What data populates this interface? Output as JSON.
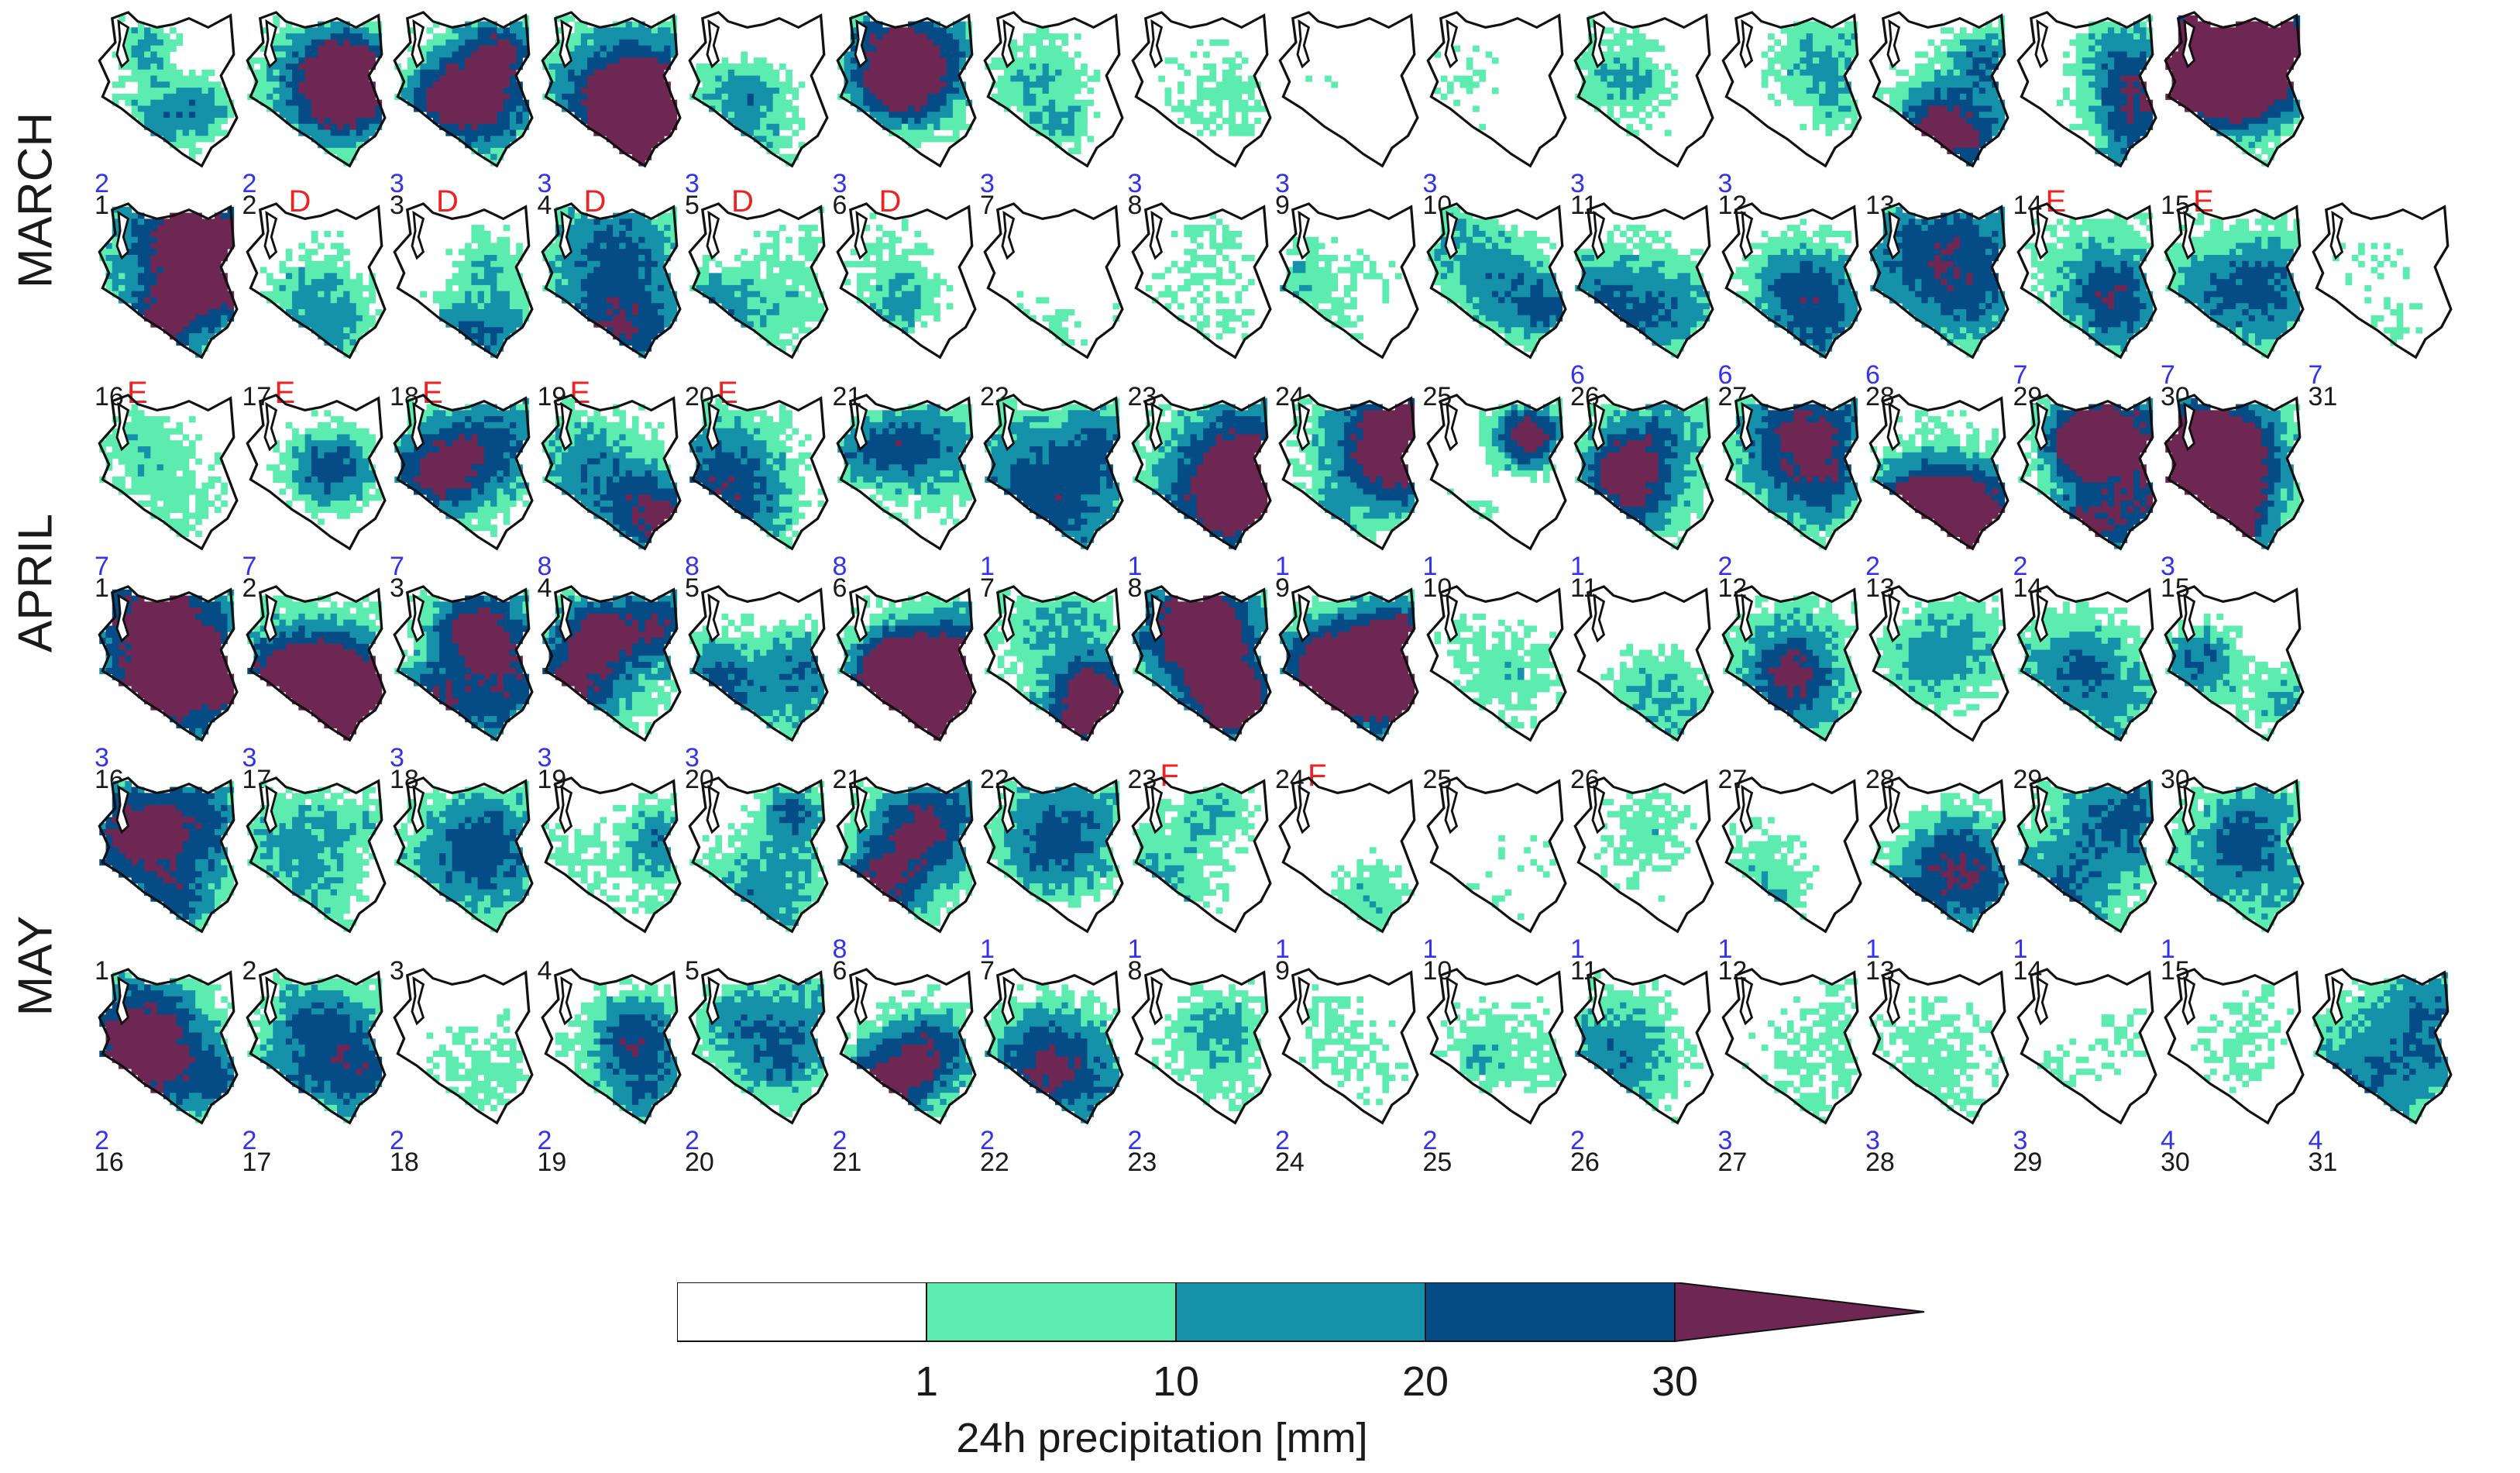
{
  "figure": {
    "months": [
      {
        "name": "MARCH",
        "rows": [
          {
            "days": [
              {
                "day": "1",
                "cat": "2",
                "event": "",
                "level": 0.45
              },
              {
                "day": "2",
                "cat": "2",
                "event": "D",
                "level": 0.72
              },
              {
                "day": "3",
                "cat": "3",
                "event": "D",
                "level": 0.7
              },
              {
                "day": "4",
                "cat": "3",
                "event": "D",
                "level": 0.88
              },
              {
                "day": "5",
                "cat": "3",
                "event": "D",
                "level": 0.45
              },
              {
                "day": "6",
                "cat": "3",
                "event": "D",
                "level": 0.6
              },
              {
                "day": "7",
                "cat": "3",
                "event": "",
                "level": 0.2
              },
              {
                "day": "8",
                "cat": "3",
                "event": "",
                "level": 0.14
              },
              {
                "day": "9",
                "cat": "3",
                "event": "",
                "level": 0.08
              },
              {
                "day": "10",
                "cat": "3",
                "event": "",
                "level": 0.14
              },
              {
                "day": "11",
                "cat": "3",
                "event": "",
                "level": 0.22
              },
              {
                "day": "12",
                "cat": "3",
                "event": "",
                "level": 0.25
              },
              {
                "day": "13",
                "cat": "",
                "event": "",
                "level": 0.5
              },
              {
                "day": "14",
                "cat": "",
                "event": "E",
                "level": 0.6
              },
              {
                "day": "15",
                "cat": "",
                "event": "E",
                "level": 0.95
              }
            ]
          },
          {
            "days": [
              {
                "day": "16",
                "cat": "",
                "event": "E",
                "level": 0.95
              },
              {
                "day": "17",
                "cat": "",
                "event": "E",
                "level": 0.25
              },
              {
                "day": "18",
                "cat": "",
                "event": "E",
                "level": 0.4
              },
              {
                "day": "19",
                "cat": "",
                "event": "E",
                "level": 0.55
              },
              {
                "day": "20",
                "cat": "",
                "event": "E",
                "level": 0.3
              },
              {
                "day": "21",
                "cat": "",
                "event": "",
                "level": 0.22
              },
              {
                "day": "22",
                "cat": "",
                "event": "",
                "level": 0.18
              },
              {
                "day": "23",
                "cat": "",
                "event": "",
                "level": 0.18
              },
              {
                "day": "24",
                "cat": "",
                "event": "",
                "level": 0.2
              },
              {
                "day": "25",
                "cat": "",
                "event": "",
                "level": 0.45
              },
              {
                "day": "26",
                "cat": "6",
                "event": "",
                "level": 0.35
              },
              {
                "day": "27",
                "cat": "6",
                "event": "",
                "level": 0.3
              },
              {
                "day": "28",
                "cat": "6",
                "event": "",
                "level": 0.4
              },
              {
                "day": "29",
                "cat": "7",
                "event": "",
                "level": 0.35
              },
              {
                "day": "30",
                "cat": "7",
                "event": "",
                "level": 0.45
              },
              {
                "day": "31",
                "cat": "7",
                "event": "",
                "level": 0.12
              }
            ]
          }
        ]
      },
      {
        "name": "APRIL",
        "rows": [
          {
            "days": [
              {
                "day": "1",
                "cat": "7",
                "event": "",
                "level": 0.22
              },
              {
                "day": "2",
                "cat": "7",
                "event": "",
                "level": 0.3
              },
              {
                "day": "3",
                "cat": "7",
                "event": "",
                "level": 0.5
              },
              {
                "day": "4",
                "cat": "8",
                "event": "",
                "level": 0.5
              },
              {
                "day": "5",
                "cat": "8",
                "event": "",
                "level": 0.45
              },
              {
                "day": "6",
                "cat": "8",
                "event": "",
                "level": 0.4
              },
              {
                "day": "7",
                "cat": "1",
                "event": "",
                "level": 0.6
              },
              {
                "day": "8",
                "cat": "1",
                "event": "",
                "level": 0.75
              },
              {
                "day": "9",
                "cat": "1",
                "event": "",
                "level": 0.6
              },
              {
                "day": "10",
                "cat": "1",
                "event": "",
                "level": 0.5
              },
              {
                "day": "11",
                "cat": "1",
                "event": "",
                "level": 0.65
              },
              {
                "day": "12",
                "cat": "2",
                "event": "",
                "level": 0.5
              },
              {
                "day": "13",
                "cat": "2",
                "event": "",
                "level": 0.75
              },
              {
                "day": "14",
                "cat": "2",
                "event": "",
                "level": 0.95
              },
              {
                "day": "15",
                "cat": "3",
                "event": "",
                "level": 0.85
              }
            ]
          },
          {
            "days": [
              {
                "day": "16",
                "cat": "3",
                "event": "",
                "level": 0.75
              },
              {
                "day": "17",
                "cat": "3",
                "event": "",
                "level": 0.75
              },
              {
                "day": "18",
                "cat": "3",
                "event": "",
                "level": 0.6
              },
              {
                "day": "19",
                "cat": "3",
                "event": "",
                "level": 0.7
              },
              {
                "day": "20",
                "cat": "3",
                "event": "",
                "level": 0.5
              },
              {
                "day": "21",
                "cat": "",
                "event": "",
                "level": 0.78
              },
              {
                "day": "22",
                "cat": "",
                "event": "",
                "level": 0.65
              },
              {
                "day": "23",
                "cat": "",
                "event": "F",
                "level": 0.75
              },
              {
                "day": "24",
                "cat": "",
                "event": "F",
                "level": 0.65
              },
              {
                "day": "25",
                "cat": "",
                "event": "",
                "level": 0.12
              },
              {
                "day": "26",
                "cat": "",
                "event": "",
                "level": 0.22
              },
              {
                "day": "27",
                "cat": "",
                "event": "",
                "level": 0.35
              },
              {
                "day": "28",
                "cat": "",
                "event": "",
                "level": 0.2
              },
              {
                "day": "29",
                "cat": "",
                "event": "",
                "level": 0.25
              },
              {
                "day": "30",
                "cat": "",
                "event": "",
                "level": 0.3
              }
            ]
          }
        ]
      },
      {
        "name": "MAY",
        "rows": [
          {
            "days": [
              {
                "day": "1",
                "cat": "",
                "event": "",
                "level": 0.4
              },
              {
                "day": "2",
                "cat": "",
                "event": "",
                "level": 0.3
              },
              {
                "day": "3",
                "cat": "",
                "event": "",
                "level": 0.25
              },
              {
                "day": "4",
                "cat": "",
                "event": "",
                "level": 0.3
              },
              {
                "day": "5",
                "cat": "",
                "event": "",
                "level": 0.35
              },
              {
                "day": "6",
                "cat": "8",
                "event": "",
                "level": 0.45
              },
              {
                "day": "7",
                "cat": "1",
                "event": "",
                "level": 0.22
              },
              {
                "day": "8",
                "cat": "1",
                "event": "",
                "level": 0.2
              },
              {
                "day": "9",
                "cat": "1",
                "event": "",
                "level": 0.12
              },
              {
                "day": "10",
                "cat": "1",
                "event": "",
                "level": 0.12
              },
              {
                "day": "11",
                "cat": "1",
                "event": "",
                "level": 0.15
              },
              {
                "day": "12",
                "cat": "1",
                "event": "",
                "level": 0.15
              },
              {
                "day": "13",
                "cat": "1",
                "event": "",
                "level": 0.35
              },
              {
                "day": "14",
                "cat": "1",
                "event": "",
                "level": 0.35
              },
              {
                "day": "15",
                "cat": "1",
                "event": "",
                "level": 0.3
              }
            ]
          },
          {
            "days": [
              {
                "day": "16",
                "cat": "2",
                "event": "",
                "level": 0.45
              },
              {
                "day": "17",
                "cat": "2",
                "event": "",
                "level": 0.4
              },
              {
                "day": "18",
                "cat": "2",
                "event": "",
                "level": 0.1
              },
              {
                "day": "19",
                "cat": "2",
                "event": "",
                "level": 0.35
              },
              {
                "day": "20",
                "cat": "2",
                "event": "",
                "level": 0.3
              },
              {
                "day": "21",
                "cat": "2",
                "event": "",
                "level": 0.5
              },
              {
                "day": "22",
                "cat": "2",
                "event": "",
                "level": 0.3
              },
              {
                "day": "23",
                "cat": "2",
                "event": "",
                "level": 0.2
              },
              {
                "day": "24",
                "cat": "2",
                "event": "",
                "level": 0.12
              },
              {
                "day": "25",
                "cat": "2",
                "event": "",
                "level": 0.2
              },
              {
                "day": "26",
                "cat": "2",
                "event": "",
                "level": 0.2
              },
              {
                "day": "27",
                "cat": "3",
                "event": "",
                "level": 0.15
              },
              {
                "day": "28",
                "cat": "3",
                "event": "",
                "level": 0.12
              },
              {
                "day": "29",
                "cat": "3",
                "event": "",
                "level": 0.1
              },
              {
                "day": "30",
                "cat": "4",
                "event": "",
                "level": 0.08
              },
              {
                "day": "31",
                "cat": "4",
                "event": "",
                "level": 0.3
              }
            ]
          }
        ]
      }
    ],
    "colorbar": {
      "title": "24h precipitation [mm]",
      "ticks": [
        "1",
        "10",
        "20",
        "30"
      ],
      "bins": [
        {
          "lower": 0,
          "upper": 1,
          "color": "#ffffff"
        },
        {
          "lower": 1,
          "upper": 10,
          "color": "#5cecb0"
        },
        {
          "lower": 10,
          "upper": 20,
          "color": "#1591aa"
        },
        {
          "lower": 20,
          "upper": 30,
          "color": "#054c86"
        },
        {
          "lower": 30,
          "upper": null,
          "color": "#6e2653"
        }
      ]
    },
    "colors": {
      "outline": "#111111",
      "category_text": "#3333ee",
      "event_text": "#ee2222",
      "day_text": "#1a1a1a"
    }
  }
}
